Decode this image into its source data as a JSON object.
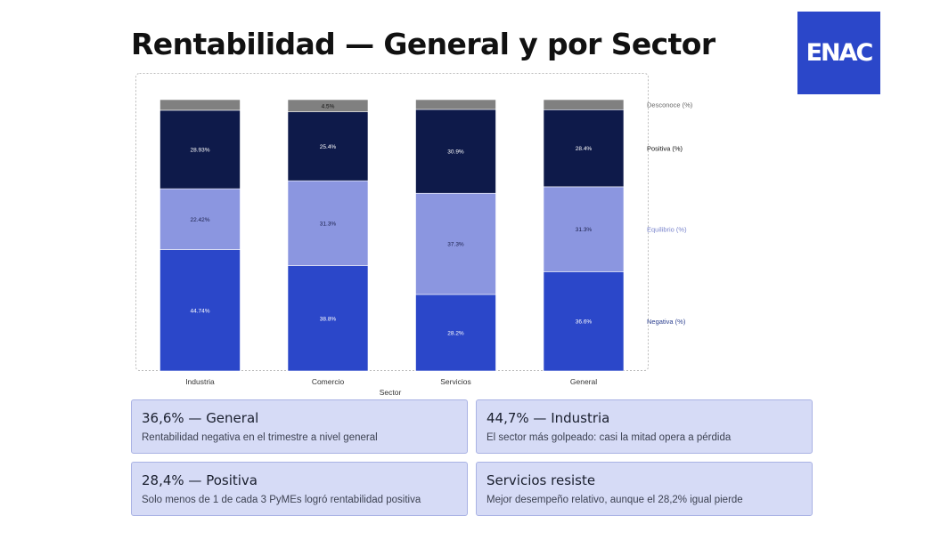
{
  "title": "Rentabilidad — General y por Sector",
  "logo": {
    "text": "ENAC",
    "color": "#2b47c9"
  },
  "chart_data": {
    "type": "bar",
    "stacked": true,
    "categories": [
      "Industria",
      "Comercio",
      "Servicios",
      "General"
    ],
    "xlabel": "Sector",
    "ylabel": "",
    "ylim": [
      0,
      100
    ],
    "grid": false,
    "legend_position": "right",
    "series": [
      {
        "name": "Negativa (%)",
        "values": [
          44.74,
          38.8,
          28.2,
          36.6
        ],
        "labels": [
          "44.74%",
          "38.8%",
          "28.2%",
          "36.6%"
        ],
        "color": "#2b47c9",
        "label_color": "#ffffff",
        "legend_color": "#2b3f8f"
      },
      {
        "name": "Equilibrio (%)",
        "values": [
          22.42,
          31.3,
          37.3,
          31.3
        ],
        "labels": [
          "22.42%",
          "31.3%",
          "37.3%",
          "31.3%"
        ],
        "color": "#8b96e0",
        "label_color": "#1a1f4a",
        "legend_color": "#7a85cc"
      },
      {
        "name": "Positiva (%)",
        "values": [
          28.93,
          25.4,
          30.9,
          28.4
        ],
        "labels": [
          "28.93%",
          "25.4%",
          "30.9%",
          "28.4%"
        ],
        "color": "#0e1a4a",
        "label_color": "#ffffff",
        "legend_color": "#111111"
      },
      {
        "name": "Desconoce (%)",
        "values": [
          3.91,
          4.5,
          3.6,
          3.7
        ],
        "labels": [
          "",
          "4.5%",
          "",
          ""
        ],
        "color": "#808080",
        "label_color": "#111111",
        "legend_color": "#666666"
      }
    ]
  },
  "cards": [
    {
      "title": "36,6% — General",
      "desc": "Rentabilidad negativa en el trimestre a nivel general"
    },
    {
      "title": "44,7% — Industria",
      "desc": "El sector más golpeado: casi la mitad opera a pérdida"
    },
    {
      "title": "28,4% — Positiva",
      "desc": "Solo menos de 1 de cada 3 PyMEs logró rentabilidad positiva"
    },
    {
      "title": "Servicios resiste",
      "desc": "Mejor desempeño relativo, aunque el 28,2% igual pierde"
    }
  ]
}
